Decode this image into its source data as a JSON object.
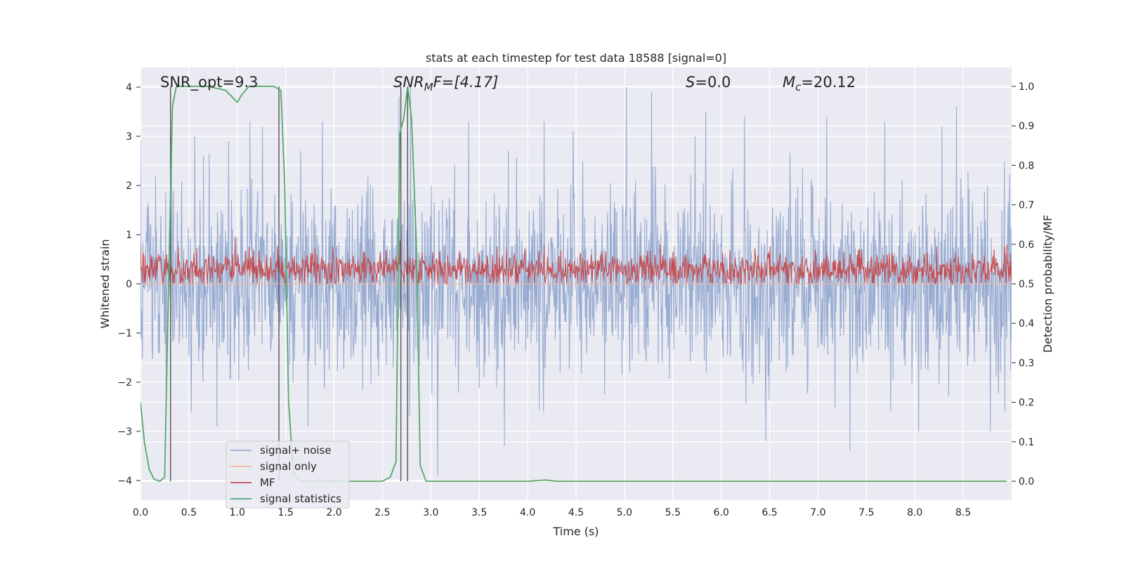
{
  "chart_data": {
    "type": "line",
    "title": "stats at each timestep for test data 18588 [signal=0]",
    "xlabel": "Time (s)",
    "ylabel": "Whitened strain",
    "y2label": "Detection probability/MF",
    "xlim": [
      0.0,
      9.0
    ],
    "ylim": [
      -4.4,
      4.4
    ],
    "y2lim": [
      -0.048,
      1.048
    ],
    "xticks": [
      "0.0",
      "0.5",
      "1.0",
      "1.5",
      "2.0",
      "2.5",
      "3.0",
      "3.5",
      "4.0",
      "4.5",
      "5.0",
      "5.5",
      "6.0",
      "6.5",
      "7.0",
      "7.5",
      "8.0",
      "8.5"
    ],
    "yticks": [
      "4",
      "3",
      "2",
      "1",
      "0",
      "−1",
      "−2",
      "−3",
      "−4"
    ],
    "y2ticks": [
      "1.0",
      "0.9",
      "0.8",
      "0.7",
      "0.6",
      "0.5",
      "0.4",
      "0.3",
      "0.2",
      "0.1",
      "0.0"
    ],
    "annotations": {
      "snr_opt": "SNR_opt=9.3",
      "snr_mf_sym": "SNR",
      "snr_mf_sub": "M",
      "snr_mf_rest": "F=[4.17]",
      "s_sym": "S",
      "s_rest": "=0.0",
      "mc_sym": "M",
      "mc_sub": "c",
      "mc_rest": "=20.12"
    },
    "vertical_lines_x": [
      0.31,
      1.43,
      2.69,
      2.76
    ],
    "legend": {
      "position": "lower-left",
      "entries": [
        {
          "label": "signal+ noise",
          "color": "#94a9cf"
        },
        {
          "label": "signal only",
          "color": "#f2b49a"
        },
        {
          "label": "MF",
          "color": "#c44e52"
        },
        {
          "label": "signal statistics",
          "color": "#55a868"
        }
      ]
    },
    "series": [
      {
        "name": "signal+ noise",
        "axis": "left",
        "style": "dense noise, amplitude about ±2.5 whitened strain",
        "peaks": [
          {
            "x": 0.0,
            "y": 2.9
          },
          {
            "x": 0.56,
            "y": 3.0
          },
          {
            "x": 0.91,
            "y": 2.9
          },
          {
            "x": 1.13,
            "y": 3.3
          },
          {
            "x": 1.26,
            "y": 3.2
          },
          {
            "x": 1.88,
            "y": 3.3
          },
          {
            "x": 2.67,
            "y": 3.8
          },
          {
            "x": 2.79,
            "y": 4.0
          },
          {
            "x": 3.39,
            "y": 3.3
          },
          {
            "x": 4.17,
            "y": 3.3
          },
          {
            "x": 4.47,
            "y": 3.1
          },
          {
            "x": 5.02,
            "y": 4.0
          },
          {
            "x": 5.28,
            "y": 3.9
          },
          {
            "x": 5.73,
            "y": 3.0
          },
          {
            "x": 5.84,
            "y": 3.5
          },
          {
            "x": 6.24,
            "y": 3.4
          },
          {
            "x": 7.09,
            "y": 3.4
          },
          {
            "x": 7.69,
            "y": 3.3
          },
          {
            "x": 8.28,
            "y": 3.2
          },
          {
            "x": 8.43,
            "y": 3.6
          }
        ],
        "troughs": [
          {
            "x": 0.79,
            "y": -2.9
          },
          {
            "x": 1.73,
            "y": -2.9
          },
          {
            "x": 2.78,
            "y": -2.7
          },
          {
            "x": 3.07,
            "y": -3.9
          },
          {
            "x": 3.76,
            "y": -3.3
          },
          {
            "x": 6.46,
            "y": -3.2
          },
          {
            "x": 7.33,
            "y": -3.4
          },
          {
            "x": 8.04,
            "y": -3.0
          },
          {
            "x": 8.78,
            "y": -3.0
          }
        ]
      },
      {
        "name": "signal only",
        "axis": "left",
        "x": [
          0.0,
          9.0
        ],
        "y": [
          0.0,
          0.0
        ]
      },
      {
        "name": "MF",
        "axis": "right",
        "style": "dense noise between about 0.50 and 0.58, peaks near 0.60",
        "peaks": [
          {
            "x": 0.0,
            "y": 0.6
          },
          {
            "x": 0.98,
            "y": 0.62
          },
          {
            "x": 2.68,
            "y": 0.61
          },
          {
            "x": 4.17,
            "y": 0.6
          },
          {
            "x": 5.37,
            "y": 0.6
          },
          {
            "x": 8.95,
            "y": 0.6
          }
        ]
      },
      {
        "name": "signal statistics",
        "axis": "right",
        "x": [
          0.0,
          0.04,
          0.09,
          0.14,
          0.2,
          0.25,
          0.29,
          0.33,
          0.37,
          0.5,
          0.7,
          0.88,
          1.0,
          1.05,
          1.12,
          1.25,
          1.38,
          1.45,
          1.49,
          1.53,
          1.58,
          1.65,
          1.8,
          2.0,
          2.5,
          2.58,
          2.64,
          2.68,
          2.72,
          2.76,
          2.8,
          2.85,
          2.89,
          2.95,
          3.0,
          3.5,
          4.0,
          4.18,
          4.3,
          5.0,
          6.0,
          7.0,
          8.0,
          8.95
        ],
        "y": [
          0.2,
          0.1,
          0.03,
          0.005,
          0.0,
          0.01,
          0.5,
          0.95,
          1.0,
          1.0,
          1.0,
          0.99,
          0.96,
          0.98,
          1.0,
          1.0,
          1.0,
          0.99,
          0.75,
          0.2,
          0.02,
          0.0,
          0.0,
          0.0,
          0.0,
          0.01,
          0.05,
          0.88,
          0.92,
          1.0,
          0.92,
          0.6,
          0.04,
          0.0,
          0.0,
          0.0,
          0.0,
          0.003,
          0.0,
          0.0,
          0.0,
          0.0,
          0.0,
          0.0
        ]
      }
    ]
  }
}
